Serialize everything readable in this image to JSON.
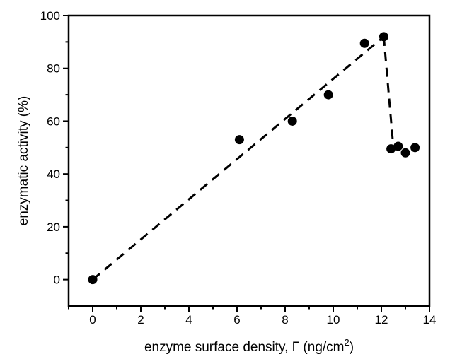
{
  "chart_data": {
    "type": "scatter",
    "title": "",
    "xlabel": {
      "main": "enzyme surface density, Γ (ng/cm",
      "sup": "2",
      "close": ")"
    },
    "ylabel": "enzymatic activity (%)",
    "xlim": [
      -1,
      14
    ],
    "ylim": [
      -10,
      100
    ],
    "x_major_ticks": [
      0,
      2,
      4,
      6,
      8,
      10,
      12,
      14
    ],
    "x_minor_ticks": [
      -1,
      1,
      3,
      5,
      7,
      9,
      11,
      13
    ],
    "y_major_ticks": [
      0,
      20,
      40,
      60,
      80,
      100
    ],
    "y_minor_ticks": [
      10,
      30,
      50,
      70,
      90
    ],
    "grid": false,
    "legend": null,
    "colors": {
      "foreground": "#000000",
      "background": "#ffffff"
    },
    "marker": {
      "shape": "circle",
      "radius": 6.5,
      "fill": "#000000"
    },
    "line": {
      "style": "dashed",
      "width": 3,
      "color": "#000000",
      "dash": [
        13,
        9
      ]
    },
    "points": [
      {
        "x": 0,
        "y": 0
      },
      {
        "x": 6.1,
        "y": 53
      },
      {
        "x": 8.3,
        "y": 60
      },
      {
        "x": 9.8,
        "y": 70
      },
      {
        "x": 11.3,
        "y": 89.5
      },
      {
        "x": 12.1,
        "y": 92
      },
      {
        "x": 12.4,
        "y": 49.5
      },
      {
        "x": 12.7,
        "y": 50.5
      },
      {
        "x": 13.0,
        "y": 48
      },
      {
        "x": 13.4,
        "y": 50
      }
    ],
    "line_segments": [
      {
        "name": "trend-dashed-line",
        "from": {
          "x": 0,
          "y": 0
        },
        "to": {
          "x": 12.1,
          "y": 92
        }
      },
      {
        "name": "drop-dashed-line",
        "from": {
          "x": 12.1,
          "y": 92
        },
        "to": {
          "x": 12.5,
          "y": 50
        }
      }
    ]
  }
}
